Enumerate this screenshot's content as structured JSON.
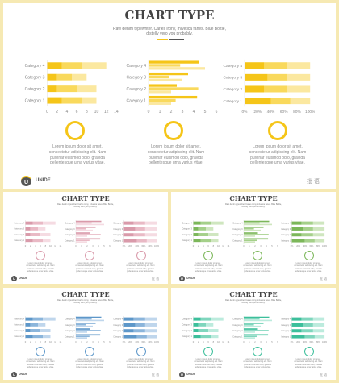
{
  "main": {
    "title": "CHART TYPE",
    "subtitle_lines": [
      "Raw denim typewriter. Carles irony, mlvetica fanes. Blue Bottle,",
      "distelly vero you probably."
    ],
    "logo_text": "UNIDE",
    "logo_badge": "U",
    "deco_text": "批 语",
    "desc_lines": [
      "Lorem ipsum dolor sit amet,",
      "consectetur adipiscing elit. Nam",
      "pulvinar euismod odio, gravida",
      "pellentesque urna varius vitae."
    ]
  },
  "colors": {
    "yellow": [
      "#f5c518",
      "#f9d95c",
      "#fbe8a0"
    ],
    "pink": [
      "#d99aaa",
      "#e9b9c5",
      "#f5dbe2"
    ],
    "green": [
      "#7cb75a",
      "#a5d08a",
      "#cfe6bf"
    ],
    "blue": [
      "#5d97c9",
      "#8bb5db",
      "#bfd6ec"
    ],
    "teal": [
      "#3cbf9b",
      "#7fd6bd",
      "#bcebdd"
    ]
  },
  "chart_data": [
    {
      "type": "bar",
      "orientation": "horizontal",
      "stacked": true,
      "categories": [
        "Category 1",
        "Category 2",
        "Category 3",
        "Category 4"
      ],
      "series": [
        {
          "values": [
            3,
            2,
            2,
            3
          ]
        },
        {
          "values": [
            4,
            4,
            3,
            4
          ]
        },
        {
          "values": [
            3,
            4,
            3,
            5
          ]
        }
      ],
      "xlim": [
        0,
        14
      ],
      "xticks": [
        "0",
        "2",
        "4",
        "6",
        "8",
        "10",
        "12",
        "14"
      ]
    },
    {
      "type": "bar",
      "orientation": "horizontal",
      "stacked": false,
      "categories": [
        "Category 1",
        "Category 2",
        "Category 3",
        "Category 4"
      ],
      "series": [
        {
          "values": [
            4.3,
            2.5,
            3.5,
            4.5
          ]
        },
        {
          "values": [
            2.4,
            4.4,
            1.8,
            2.8
          ]
        },
        {
          "values": [
            2.0,
            2.0,
            3.0,
            5.0
          ]
        }
      ],
      "xlim": [
        0,
        6
      ],
      "xticks": [
        "0",
        "1",
        "2",
        "3",
        "4",
        "5",
        "6"
      ]
    },
    {
      "type": "bar",
      "orientation": "horizontal",
      "stacked": true,
      "percent": true,
      "categories": [
        "Category 1",
        "Category 2",
        "Category 3",
        "Category 4"
      ],
      "series": [
        {
          "values": [
            40,
            30,
            35,
            30
          ]
        },
        {
          "values": [
            30,
            35,
            30,
            35
          ]
        },
        {
          "values": [
            30,
            35,
            35,
            35
          ]
        }
      ],
      "xlim": [
        0,
        100
      ],
      "xticks": [
        "0%",
        "20%",
        "40%",
        "60%",
        "80%",
        "100%"
      ]
    }
  ]
}
